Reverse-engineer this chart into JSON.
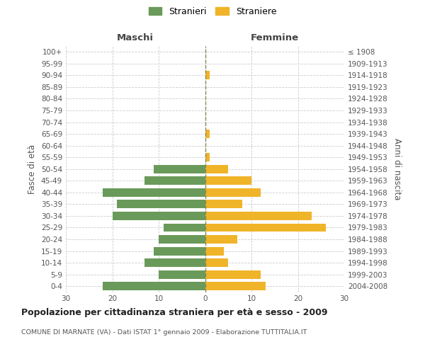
{
  "age_groups": [
    "0-4",
    "5-9",
    "10-14",
    "15-19",
    "20-24",
    "25-29",
    "30-34",
    "35-39",
    "40-44",
    "45-49",
    "50-54",
    "55-59",
    "60-64",
    "65-69",
    "70-74",
    "75-79",
    "80-84",
    "85-89",
    "90-94",
    "95-99",
    "100+"
  ],
  "birth_years": [
    "2004-2008",
    "1999-2003",
    "1994-1998",
    "1989-1993",
    "1984-1988",
    "1979-1983",
    "1974-1978",
    "1969-1973",
    "1964-1968",
    "1959-1963",
    "1954-1958",
    "1949-1953",
    "1944-1948",
    "1939-1943",
    "1934-1938",
    "1929-1933",
    "1924-1928",
    "1919-1923",
    "1914-1918",
    "1909-1913",
    "≤ 1908"
  ],
  "maschi": [
    22,
    10,
    13,
    11,
    10,
    9,
    20,
    19,
    22,
    13,
    11,
    0,
    0,
    0,
    0,
    0,
    0,
    0,
    0,
    0,
    0
  ],
  "femmine": [
    13,
    12,
    5,
    4,
    7,
    26,
    23,
    8,
    12,
    10,
    5,
    1,
    0,
    1,
    0,
    0,
    0,
    0,
    1,
    0,
    0
  ],
  "color_maschi": "#6a9a5a",
  "color_femmine": "#f0b429",
  "title_main": "Popolazione per cittadinanza straniera per età e sesso - 2009",
  "title_sub": "COMUNE DI MARNATE (VA) - Dati ISTAT 1° gennaio 2009 - Elaborazione TUTTITALIA.IT",
  "label_maschi": "Stranieri",
  "label_femmine": "Straniere",
  "xlabel_left": "Maschi",
  "xlabel_right": "Femmine",
  "ylabel_left": "Fasce di età",
  "ylabel_right": "Anni di nascita",
  "xlim": 30,
  "background_color": "#ffffff",
  "grid_color": "#cccccc"
}
